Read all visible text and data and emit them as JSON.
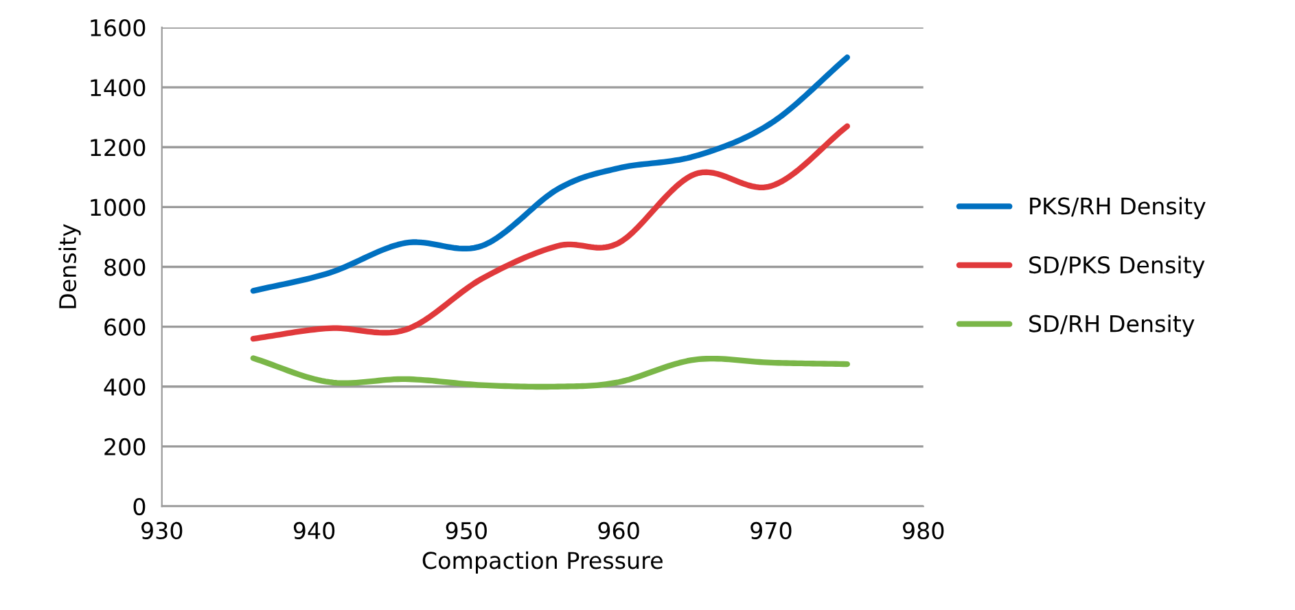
{
  "chart_data": {
    "type": "line",
    "xlabel": "Compaction Pressure",
    "ylabel": "Density",
    "x": [
      936,
      941,
      946,
      951,
      956,
      960,
      965,
      970,
      975
    ],
    "series": [
      {
        "name": "PKS/RH Density",
        "color": "#0070c0",
        "values": [
          720,
          780,
          880,
          870,
          1060,
          1130,
          1170,
          1280,
          1500
        ]
      },
      {
        "name": "SD/PKS Density",
        "color": "#e0393b",
        "values": [
          560,
          595,
          590,
          760,
          870,
          880,
          1110,
          1070,
          1270
        ]
      },
      {
        "name": "SD/RH Density",
        "color": "#7ab648",
        "values": [
          495,
          415,
          425,
          405,
          400,
          415,
          490,
          480,
          475
        ]
      }
    ],
    "xlim": [
      930,
      980
    ],
    "xticks": [
      930,
      940,
      950,
      960,
      970,
      980
    ],
    "ylim": [
      0,
      1600
    ],
    "yticks": [
      0,
      200,
      400,
      600,
      800,
      1000,
      1200,
      1400,
      1600
    ],
    "grid": "y",
    "legend": "right",
    "marker": "none",
    "line_style": "solid"
  }
}
